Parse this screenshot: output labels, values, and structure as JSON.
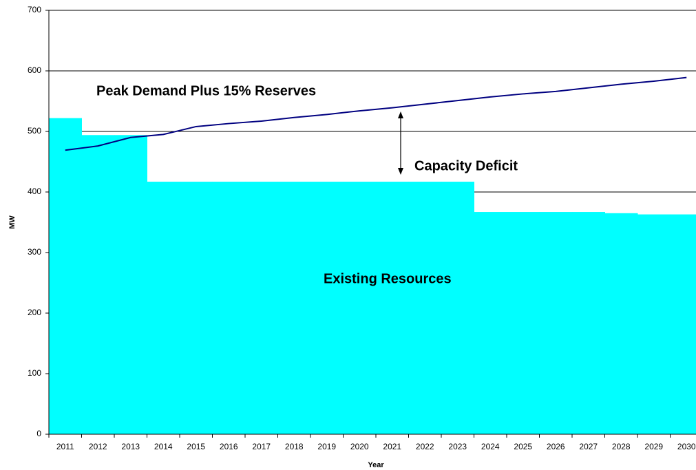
{
  "chart_data": {
    "type": "bar_line",
    "y_label": "MW",
    "x_label": "Year",
    "categories": [
      "2011",
      "2012",
      "2013",
      "2014",
      "2015",
      "2016",
      "2017",
      "2018",
      "2019",
      "2020",
      "2021",
      "2022",
      "2023",
      "2024",
      "2025",
      "2026",
      "2027",
      "2028",
      "2029",
      "2030"
    ],
    "series": [
      {
        "name": "Existing Resources",
        "type": "bar",
        "color": "#00ffff",
        "values": [
          522,
          494,
          494,
          417,
          417,
          417,
          417,
          417,
          417,
          417,
          417,
          417,
          417,
          367,
          367,
          367,
          367,
          365,
          363,
          363
        ]
      },
      {
        "name": "Peak Demand Plus 15% Reserves",
        "type": "line",
        "color": "#000080",
        "values": [
          469,
          476,
          490,
          495,
          508,
          513,
          517,
          523,
          528,
          534,
          539,
          545,
          551,
          557,
          562,
          566,
          572,
          578,
          583,
          589
        ]
      }
    ],
    "annotations": [
      "Capacity Deficit"
    ],
    "ylim": [
      0,
      700
    ],
    "yticks": [
      0,
      100,
      200,
      300,
      400,
      500,
      600,
      700
    ],
    "grid": true
  }
}
